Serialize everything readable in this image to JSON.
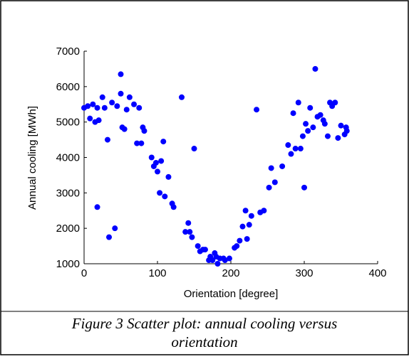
{
  "chart_data": {
    "type": "scatter",
    "xlabel": "Orientation [degree]",
    "ylabel": "Annual cooling [MWh]",
    "caption": "Figure 3 Scatter plot: annual cooling versus orientation",
    "color": "#0000ff",
    "x": [
      0,
      5,
      8,
      12,
      15,
      18,
      18,
      20,
      25,
      28,
      32,
      34,
      38,
      42,
      45,
      50,
      50,
      52,
      55,
      58,
      62,
      68,
      72,
      75,
      78,
      80,
      82,
      92,
      95,
      98,
      100,
      103,
      105,
      108,
      110,
      115,
      120,
      122,
      133,
      138,
      142,
      144,
      147,
      150,
      155,
      158,
      162,
      165,
      170,
      172,
      175,
      178,
      180,
      182,
      185,
      190,
      192,
      198,
      205,
      208,
      212,
      216,
      220,
      222,
      225,
      228,
      235,
      240,
      245,
      252,
      255,
      260,
      270,
      278,
      282,
      285,
      288,
      292,
      295,
      298,
      300,
      302,
      305,
      308,
      312,
      315,
      318,
      322,
      326,
      328,
      332,
      335,
      338,
      342,
      346,
      350,
      355,
      357,
      358
    ],
    "values": [
      5400,
      5450,
      5100,
      5500,
      5000,
      5400,
      2600,
      5050,
      5700,
      5400,
      4500,
      1750,
      5550,
      2000,
      5450,
      6350,
      5800,
      4850,
      4800,
      5350,
      5700,
      5500,
      4400,
      5400,
      4400,
      4850,
      4750,
      4000,
      3750,
      3850,
      3600,
      3000,
      3900,
      4450,
      2900,
      3450,
      2700,
      2600,
      5700,
      1900,
      2150,
      1900,
      1750,
      4250,
      1500,
      1350,
      1400,
      1400,
      1100,
      1200,
      1100,
      1300,
      1200,
      1000,
      1150,
      1150,
      1100,
      1150,
      1450,
      1500,
      1650,
      2050,
      2500,
      1700,
      2100,
      2350,
      5350,
      2450,
      2500,
      3150,
      3700,
      3300,
      3750,
      4350,
      4100,
      5250,
      4250,
      5550,
      4250,
      4600,
      3150,
      4950,
      4750,
      5400,
      4850,
      6500,
      5150,
      5200,
      5050,
      4950,
      4600,
      5550,
      5450,
      5550,
      4550,
      4900,
      4650,
      4850,
      4750
    ],
    "xlim": [
      0,
      400
    ],
    "xticks": [
      0,
      100,
      200,
      300,
      400
    ],
    "ylim": [
      1000,
      7000
    ],
    "yticks": [
      1000,
      2000,
      3000,
      4000,
      5000,
      6000,
      7000
    ]
  }
}
